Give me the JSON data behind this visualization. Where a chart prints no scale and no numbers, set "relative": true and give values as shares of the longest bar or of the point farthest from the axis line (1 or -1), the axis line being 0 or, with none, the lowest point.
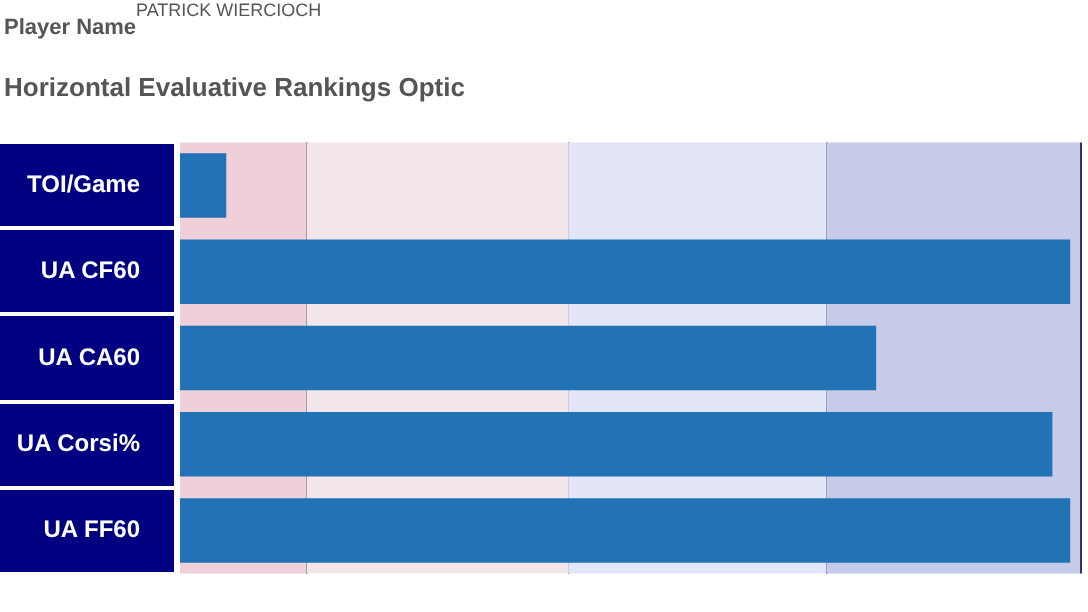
{
  "chart_data": {
    "type": "bar",
    "orientation": "horizontal",
    "relative": true,
    "title": "Horizontal Evaluative Rankings Optic",
    "annotations": [
      "Player Name",
      "PATRICK WIERCIOCH"
    ],
    "categories": [
      "TOI/Game",
      "UA CF60",
      "UA CA60",
      "UA Corsi%",
      "UA FF60"
    ],
    "values": [
      0.052,
      1,
      0.782,
      0.98,
      1
    ],
    "color": "#2173b5",
    "bands": [
      {
        "axis": "x",
        "from": 0,
        "to": 0.142,
        "color": "#f0d0d8"
      },
      {
        "axis": "x",
        "from": 0.142,
        "to": 0.436,
        "color": "#f3e6ea"
      },
      {
        "axis": "x",
        "from": 0.436,
        "to": 0.726,
        "color": "#e3e6f7"
      },
      {
        "axis": "x",
        "from": 0.726,
        "to": 1.011,
        "color": "#c5cbe9"
      }
    ],
    "legend": false
  }
}
